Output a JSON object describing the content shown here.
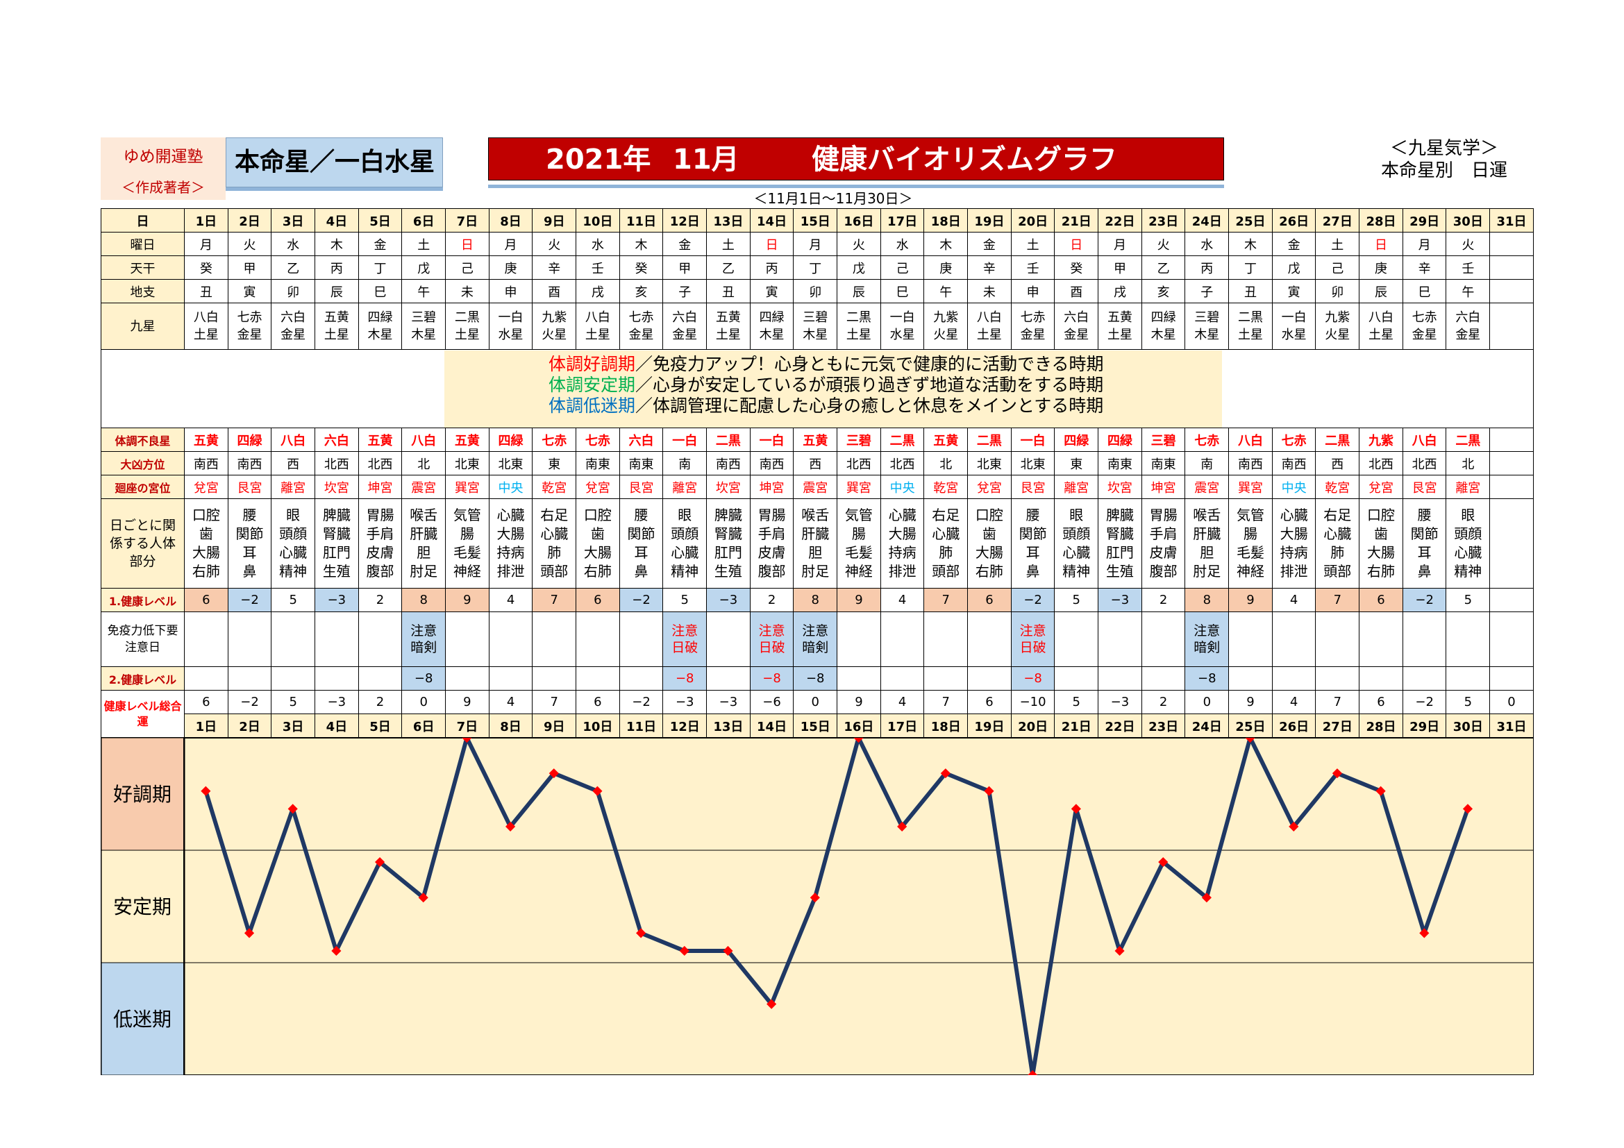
{
  "header": {
    "author_name": "ゆめ開運塾",
    "author_sub": "＜作成著者＞",
    "honmei": "本命星／一白水星",
    "title_year": "2021年",
    "title_month": "11月",
    "title_name": "健康バイオリズムグラフ",
    "range": "＜11月1日～11月30日＞",
    "kyusei_line1": "＜九星気学＞",
    "kyusei_line2": "本命星別　日運"
  },
  "labels": {
    "day": "日",
    "weekday": "曜日",
    "tenkan": "天干",
    "chishi": "地支",
    "kyusei": "九星",
    "bad_star": "体調不良星",
    "direction": "大凶方位",
    "palace": "廻座の宮位",
    "body_parts": "日ごとに関係する人体部分",
    "level1": "1.健康レベル",
    "immunity": "免疫力低下要注意日",
    "level2": "2.健康レベル",
    "total": "健康レベル総合運",
    "band_good": "好調期",
    "band_stable": "安定期",
    "band_low": "低迷期"
  },
  "legend": [
    {
      "term": "体調好調期",
      "text": "／免疫力アップ！心身ともに元気で健康的に活動できる時期",
      "color": "red"
    },
    {
      "term": "体調安定期",
      "text": "／心身が安定しているが頑張り過ぎず地道な活動をする時期",
      "color": "green"
    },
    {
      "term": "体調低迷期",
      "text": "／体調管理に配慮した心身の癒しと休息をメインとする時期",
      "color": "blue"
    }
  ],
  "days": [
    "1日",
    "2日",
    "3日",
    "4日",
    "5日",
    "6日",
    "7日",
    "8日",
    "9日",
    "10日",
    "11日",
    "12日",
    "13日",
    "14日",
    "15日",
    "16日",
    "17日",
    "18日",
    "19日",
    "20日",
    "21日",
    "22日",
    "23日",
    "24日",
    "25日",
    "26日",
    "27日",
    "28日",
    "29日",
    "30日",
    "31日"
  ],
  "weekdays": [
    "月",
    "火",
    "水",
    "木",
    "金",
    "土",
    "日",
    "月",
    "火",
    "水",
    "木",
    "金",
    "土",
    "日",
    "月",
    "火",
    "水",
    "木",
    "金",
    "土",
    "日",
    "月",
    "火",
    "水",
    "木",
    "金",
    "土",
    "日",
    "月",
    "火",
    ""
  ],
  "tenkan": [
    "癸",
    "甲",
    "乙",
    "丙",
    "丁",
    "戊",
    "己",
    "庚",
    "辛",
    "壬",
    "癸",
    "甲",
    "乙",
    "丙",
    "丁",
    "戊",
    "己",
    "庚",
    "辛",
    "壬",
    "癸",
    "甲",
    "乙",
    "丙",
    "丁",
    "戊",
    "己",
    "庚",
    "辛",
    "壬",
    ""
  ],
  "chishi": [
    "丑",
    "寅",
    "卯",
    "辰",
    "巳",
    "午",
    "未",
    "申",
    "酉",
    "戌",
    "亥",
    "子",
    "丑",
    "寅",
    "卯",
    "辰",
    "巳",
    "午",
    "未",
    "申",
    "酉",
    "戌",
    "亥",
    "子",
    "丑",
    "寅",
    "卯",
    "辰",
    "巳",
    "午",
    ""
  ],
  "kyusei": [
    [
      "八白",
      "土星"
    ],
    [
      "七赤",
      "金星"
    ],
    [
      "六白",
      "金星"
    ],
    [
      "五黄",
      "土星"
    ],
    [
      "四緑",
      "木星"
    ],
    [
      "三碧",
      "木星"
    ],
    [
      "二黒",
      "土星"
    ],
    [
      "一白",
      "水星"
    ],
    [
      "九紫",
      "火星"
    ],
    [
      "八白",
      "土星"
    ],
    [
      "七赤",
      "金星"
    ],
    [
      "六白",
      "金星"
    ],
    [
      "五黄",
      "土星"
    ],
    [
      "四緑",
      "木星"
    ],
    [
      "三碧",
      "木星"
    ],
    [
      "二黒",
      "土星"
    ],
    [
      "一白",
      "水星"
    ],
    [
      "九紫",
      "火星"
    ],
    [
      "八白",
      "土星"
    ],
    [
      "七赤",
      "金星"
    ],
    [
      "六白",
      "金星"
    ],
    [
      "五黄",
      "土星"
    ],
    [
      "四緑",
      "木星"
    ],
    [
      "三碧",
      "木星"
    ],
    [
      "二黒",
      "土星"
    ],
    [
      "一白",
      "水星"
    ],
    [
      "九紫",
      "火星"
    ],
    [
      "八白",
      "土星"
    ],
    [
      "七赤",
      "金星"
    ],
    [
      "六白",
      "金星"
    ],
    [
      "",
      ""
    ]
  ],
  "bad_stars": [
    "五黄",
    "四緑",
    "八白",
    "六白",
    "五黄",
    "八白",
    "五黄",
    "四緑",
    "七赤",
    "七赤",
    "六白",
    "一白",
    "二黒",
    "一白",
    "五黄",
    "三碧",
    "二黒",
    "五黄",
    "二黒",
    "一白",
    "四緑",
    "四緑",
    "三碧",
    "七赤",
    "八白",
    "七赤",
    "二黒",
    "九紫",
    "八白",
    "二黒",
    ""
  ],
  "directions": [
    "南西",
    "南西",
    "西",
    "北西",
    "北西",
    "北",
    "北東",
    "北東",
    "東",
    "南東",
    "南東",
    "南",
    "南西",
    "南西",
    "西",
    "北西",
    "北西",
    "北",
    "北東",
    "北東",
    "東",
    "南東",
    "南東",
    "南",
    "南西",
    "南西",
    "西",
    "北西",
    "北西",
    "北",
    ""
  ],
  "palaces": [
    "兌宮",
    "艮宮",
    "離宮",
    "坎宮",
    "坤宮",
    "震宮",
    "巽宮",
    "中央",
    "乾宮",
    "兌宮",
    "艮宮",
    "離宮",
    "坎宮",
    "坤宮",
    "震宮",
    "巽宮",
    "中央",
    "乾宮",
    "兌宮",
    "艮宮",
    "離宮",
    "坎宮",
    "坤宮",
    "震宮",
    "巽宮",
    "中央",
    "乾宮",
    "兌宮",
    "艮宮",
    "離宮",
    ""
  ],
  "body_parts": [
    [
      "口腔",
      "歯",
      "大腸",
      "右肺"
    ],
    [
      "腰",
      "関節",
      "耳",
      "鼻"
    ],
    [
      "眼",
      "頭顔",
      "心臓",
      "精神"
    ],
    [
      "脾臓",
      "腎臓",
      "肛門",
      "生殖"
    ],
    [
      "胃腸",
      "手肩",
      "皮膚",
      "腹部"
    ],
    [
      "喉舌",
      "肝臓",
      "胆",
      "肘足"
    ],
    [
      "気管",
      "腸",
      "毛髪",
      "神経"
    ],
    [
      "心臓",
      "大腸",
      "持病",
      "排泄"
    ],
    [
      "右足",
      "心臓",
      "肺",
      "頭部"
    ],
    [
      "口腔",
      "歯",
      "大腸",
      "右肺"
    ],
    [
      "腰",
      "関節",
      "耳",
      "鼻"
    ],
    [
      "眼",
      "頭顔",
      "心臓",
      "精神"
    ],
    [
      "脾臓",
      "腎臓",
      "肛門",
      "生殖"
    ],
    [
      "胃腸",
      "手肩",
      "皮膚",
      "腹部"
    ],
    [
      "喉舌",
      "肝臓",
      "胆",
      "肘足"
    ],
    [
      "気管",
      "腸",
      "毛髪",
      "神経"
    ],
    [
      "心臓",
      "大腸",
      "持病",
      "排泄"
    ],
    [
      "右足",
      "心臓",
      "肺",
      "頭部"
    ],
    [
      "口腔",
      "歯",
      "大腸",
      "右肺"
    ],
    [
      "腰",
      "関節",
      "耳",
      "鼻"
    ],
    [
      "眼",
      "頭顔",
      "心臓",
      "精神"
    ],
    [
      "脾臓",
      "腎臓",
      "肛門",
      "生殖"
    ],
    [
      "胃腸",
      "手肩",
      "皮膚",
      "腹部"
    ],
    [
      "喉舌",
      "肝臓",
      "胆",
      "肘足"
    ],
    [
      "気管",
      "腸",
      "毛髪",
      "神経"
    ],
    [
      "心臓",
      "大腸",
      "持病",
      "排泄"
    ],
    [
      "右足",
      "心臓",
      "肺",
      "頭部"
    ],
    [
      "口腔",
      "歯",
      "大腸",
      "右肺"
    ],
    [
      "腰",
      "関節",
      "耳",
      "鼻"
    ],
    [
      "眼",
      "頭顔",
      "心臓",
      "精神"
    ],
    []
  ],
  "level1": [
    "6",
    "−2",
    "5",
    "−3",
    "2",
    "8",
    "9",
    "4",
    "7",
    "6",
    "−2",
    "5",
    "−3",
    "2",
    "8",
    "9",
    "4",
    "7",
    "6",
    "−2",
    "5",
    "−3",
    "2",
    "8",
    "9",
    "4",
    "7",
    "6",
    "−2",
    "5",
    ""
  ],
  "immunity": [
    [],
    [],
    [],
    [],
    [],
    [
      "注意",
      "暗剣"
    ],
    [],
    [],
    [],
    [],
    [],
    [
      "注意",
      "日破"
    ],
    [],
    [
      "注意",
      "日破"
    ],
    [
      "注意",
      "暗剣"
    ],
    [],
    [],
    [],
    [],
    [
      "注意",
      "日破"
    ],
    [],
    [],
    [],
    [
      "注意",
      "暗剣"
    ],
    [],
    [],
    [],
    [],
    [],
    [],
    []
  ],
  "level2": [
    "",
    "",
    "",
    "",
    "",
    "−8",
    "",
    "",
    "",
    "",
    "",
    "−8",
    "",
    "−8",
    "−8",
    "",
    "",
    "",
    "",
    "−8",
    "",
    "",
    "",
    "−8",
    "",
    "",
    "",
    "",
    "",
    "",
    ""
  ],
  "totals": [
    "6",
    "−2",
    "5",
    "−3",
    "2",
    "0",
    "9",
    "4",
    "7",
    "6",
    "−2",
    "−3",
    "−3",
    "−6",
    "0",
    "9",
    "4",
    "7",
    "6",
    "−10",
    "5",
    "−3",
    "2",
    "0",
    "9",
    "4",
    "7",
    "6",
    "−2",
    "5",
    "0"
  ],
  "chart_data": {
    "type": "line",
    "x": [
      "1日",
      "2日",
      "3日",
      "4日",
      "5日",
      "6日",
      "7日",
      "8日",
      "9日",
      "10日",
      "11日",
      "12日",
      "13日",
      "14日",
      "15日",
      "16日",
      "17日",
      "18日",
      "19日",
      "20日",
      "21日",
      "22日",
      "23日",
      "24日",
      "25日",
      "26日",
      "27日",
      "28日",
      "29日",
      "30日"
    ],
    "values": [
      6,
      -2,
      5,
      -3,
      2,
      0,
      9,
      4,
      7,
      6,
      -2,
      -3,
      -3,
      -6,
      0,
      9,
      4,
      7,
      6,
      -10,
      5,
      -3,
      2,
      0,
      9,
      4,
      7,
      6,
      -2,
      5
    ],
    "ylim": [
      -10,
      9
    ],
    "bands": [
      "好調期",
      "安定期",
      "低迷期"
    ],
    "line_color": "#1f3864",
    "marker_color": "#ff0000",
    "band_colors": [
      "#f8cbad",
      "#fff2cc",
      "#bdd7ee"
    ],
    "plot_color": "#fff2cc"
  }
}
